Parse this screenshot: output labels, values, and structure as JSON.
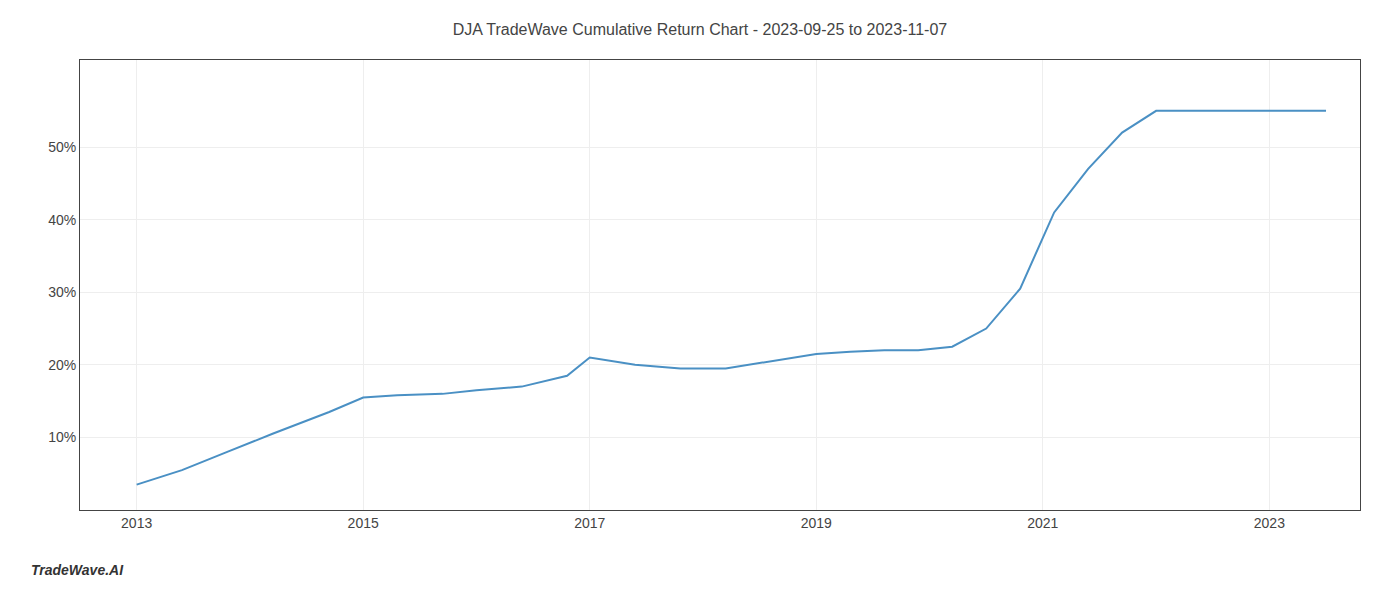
{
  "chart_data": {
    "type": "line",
    "title": "DJA TradeWave Cumulative Return Chart - 2023-09-25 to 2023-11-07",
    "annotations": [
      "TradeWave.AI"
    ],
    "x": [
      2013.0,
      2013.4,
      2013.8,
      2014.2,
      2014.7,
      2015.0,
      2015.3,
      2015.7,
      2016.0,
      2016.4,
      2016.8,
      2017.0,
      2017.4,
      2017.8,
      2018.2,
      2018.6,
      2019.0,
      2019.3,
      2019.6,
      2019.9,
      2020.2,
      2020.5,
      2020.8,
      2021.1,
      2021.4,
      2021.7,
      2022.0,
      2022.3,
      2022.6,
      2022.9,
      2023.0,
      2023.5
    ],
    "values": [
      3.5,
      5.5,
      8.0,
      10.5,
      13.5,
      15.5,
      15.8,
      16.0,
      16.5,
      17.0,
      18.5,
      21.0,
      20.0,
      19.5,
      19.5,
      20.5,
      21.5,
      21.8,
      22.0,
      22.0,
      22.5,
      25.0,
      30.5,
      41.0,
      47.0,
      52.0,
      55.0,
      55.0,
      55.0,
      55.0,
      55.0,
      55.0
    ],
    "color": "#4a90c4",
    "xlim": [
      2012.5,
      2023.8
    ],
    "ylim": [
      0,
      62
    ],
    "xticks": [
      2013,
      2015,
      2017,
      2019,
      2021,
      2023
    ],
    "yticks": [
      {
        "value": 10,
        "label": "10%"
      },
      {
        "value": 20,
        "label": "20%"
      },
      {
        "value": 30,
        "label": "30%"
      },
      {
        "value": 40,
        "label": "40%"
      },
      {
        "value": 50,
        "label": "50%"
      }
    ],
    "grid": true
  }
}
